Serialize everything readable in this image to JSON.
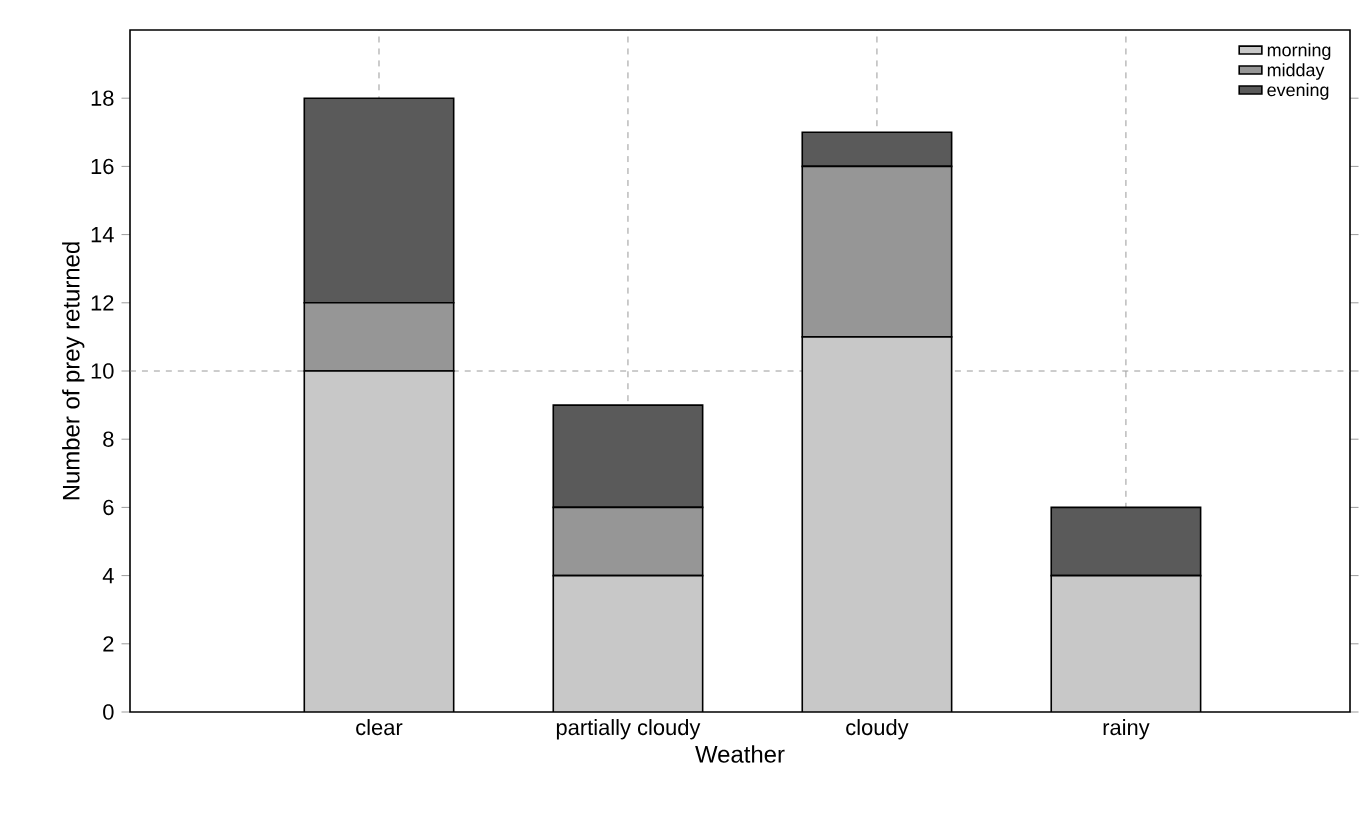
{
  "chart_data": {
    "type": "bar",
    "stacked": true,
    "xlabel": "Weather",
    "ylabel": "Number of prey returned",
    "categories": [
      "clear",
      "partially cloudy",
      "cloudy",
      "rainy"
    ],
    "series": [
      {
        "name": "morning",
        "color": "#c8c8c8",
        "values": [
          10,
          4,
          11,
          4
        ]
      },
      {
        "name": "midday",
        "color": "#969696",
        "values": [
          2,
          2,
          5,
          0
        ]
      },
      {
        "name": "evening",
        "color": "#5a5a5a",
        "values": [
          6,
          3,
          1,
          2
        ]
      }
    ],
    "ylim": [
      0,
      20
    ],
    "yticks": [
      0,
      2,
      4,
      6,
      8,
      10,
      12,
      14,
      16,
      18
    ],
    "grid": "x",
    "legend": "top right",
    "ref_lines": [
      {
        "axis": "y",
        "value": 10
      }
    ]
  }
}
